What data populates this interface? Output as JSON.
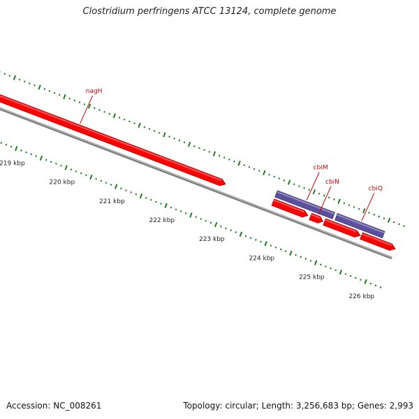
{
  "title": "Clostridium perfringens ATCC 13124, complete genome",
  "footer": {
    "accession": "Accession: NC_008261",
    "summary": "Topology: circular; Length: 3,256,683 bp; Genes: 2,993"
  },
  "colors": {
    "forward_gene": "#ff0000",
    "reverse_gene": "#5b4f9e",
    "backbone": "#808080",
    "ticks": "#1e7a1e",
    "gene_label": "#cc0000"
  },
  "genes": [
    {
      "name": "nagH",
      "strand": "forward",
      "start_kbp": 217.6,
      "end_kbp": 222.9,
      "labeled": true
    },
    {
      "name": "cbiM",
      "strand": "reverse",
      "start_kbp": 223.85,
      "end_kbp": 225.0,
      "labeled": true
    },
    {
      "name": "",
      "strand": "forward",
      "start_kbp": 223.85,
      "end_kbp": 224.55,
      "labeled": false
    },
    {
      "name": "cbiN",
      "strand": "forward",
      "start_kbp": 224.6,
      "end_kbp": 224.85,
      "labeled": true
    },
    {
      "name": "",
      "strand": "forward",
      "start_kbp": 224.88,
      "end_kbp": 225.6,
      "labeled": false
    },
    {
      "name": "cbiQ",
      "strand": "reverse",
      "start_kbp": 225.05,
      "end_kbp": 226.0,
      "labeled": true
    },
    {
      "name": "",
      "strand": "forward",
      "start_kbp": 225.62,
      "end_kbp": 226.3,
      "labeled": false
    }
  ],
  "scale_labels": [
    "219 kbp",
    "220 kbp",
    "221 kbp",
    "222 kbp",
    "223 kbp",
    "224 kbp",
    "225 kbp",
    "226 kbp"
  ]
}
